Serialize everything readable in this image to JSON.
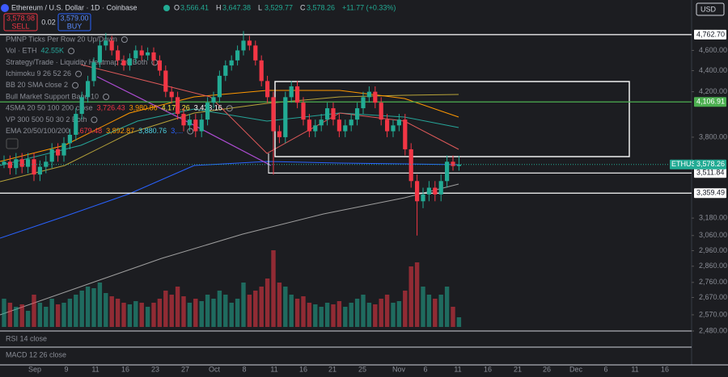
{
  "header": {
    "symbol": "Ethereum / U.S. Dollar · 1D · Coinbase",
    "ohlc_labels": [
      "O",
      "H",
      "L",
      "C"
    ],
    "ohlc_values": [
      "3,566.41",
      "3,647.38",
      "3,529.77",
      "3,578.26"
    ],
    "change": "+11.77 (+0.33%)",
    "currency": "USD"
  },
  "trade": {
    "sell_price": "3,578.98",
    "sell": "SELL",
    "spread": "0.02",
    "buy_price": "3,579.00",
    "buy": "BUY"
  },
  "indicators": [
    {
      "name": "PMNP Ticks Per Row 20 Up/Down"
    },
    {
      "name": "Vol · ETH",
      "values": [
        "42.55K"
      ],
      "colors": [
        "#26a69a"
      ]
    },
    {
      "name": "Strategy/Trade · Liquidity Heatmap 2.0 Both"
    },
    {
      "name": "Ichimoku 9 26 52 26"
    },
    {
      "name": "BB 20 SMA close 2"
    },
    {
      "name": "Bull Market Support Band 10"
    },
    {
      "name": "4SMA 20 50 100 200 close",
      "values": [
        "3,726.43",
        "3,980.86",
        "4,179.26",
        "3,433.16"
      ],
      "colors": [
        "#f23645",
        "#ff9800",
        "#ffeb3b",
        "#ffffff"
      ]
    },
    {
      "name": "VP 300 500 50 30 2 Both"
    },
    {
      "name": "EMA 20/50/100/200",
      "values": [
        "3,679.48",
        "3,892.87",
        "3,880.76",
        "3,..."
      ],
      "colors": [
        "#f23645",
        "#ff9800",
        "#4dd0e1",
        "#2962ff"
      ]
    }
  ],
  "chart_data": {
    "type": "candlestick",
    "symbol": "ETHUSD",
    "log": true,
    "ylim": [
      2480,
      5140
    ],
    "up_color": "#22ab94",
    "down_color": "#f23645",
    "open": [
      3580,
      3600,
      3550,
      3620,
      3560,
      3620,
      3500,
      3560,
      3600,
      3700,
      3650,
      3750,
      3820,
      4000,
      4150,
      4300,
      4480,
      4650,
      4700,
      4600,
      4500,
      4450,
      4520,
      4600,
      4550,
      4580,
      4500,
      4400,
      4200,
      4150,
      4000,
      3900,
      3950,
      3850,
      3950,
      4100,
      4150,
      4350,
      4450,
      4500,
      4600,
      4700,
      4650,
      4500,
      4300,
      4150,
      3850,
      3800,
      4150,
      4250,
      4100,
      3950,
      3850,
      3900,
      3950,
      4050,
      3950,
      3850,
      3900,
      3950,
      4050,
      4150,
      4200,
      4100,
      3950,
      3850,
      3900,
      3950,
      3700,
      3450,
      3300,
      3350,
      3400,
      3350,
      3450,
      3600,
      3566.41
    ],
    "high": [
      3650,
      3650,
      3670,
      3670,
      3670,
      3670,
      3610,
      3650,
      3750,
      3750,
      3800,
      3870,
      4050,
      4200,
      4350,
      4530,
      4700,
      4780,
      4750,
      4650,
      4550,
      4570,
      4650,
      4650,
      4630,
      4630,
      4550,
      4450,
      4250,
      4200,
      4050,
      4000,
      4000,
      4000,
      4150,
      4200,
      4400,
      4500,
      4550,
      4650,
      4800,
      4750,
      4700,
      4550,
      4350,
      4200,
      3900,
      4200,
      4300,
      4300,
      4150,
      4000,
      3950,
      4000,
      4100,
      4100,
      4000,
      3950,
      4000,
      4100,
      4200,
      4250,
      4250,
      4150,
      4000,
      3950,
      4000,
      4000,
      3750,
      3500,
      3400,
      3450,
      3450,
      3500,
      3650,
      3650,
      3647.38
    ],
    "low": [
      3550,
      3500,
      3500,
      3510,
      3510,
      3450,
      3450,
      3510,
      3550,
      3600,
      3600,
      3700,
      3770,
      3950,
      4100,
      4250,
      4430,
      4600,
      4550,
      4450,
      4400,
      4400,
      4470,
      4500,
      4500,
      4450,
      4350,
      4150,
      4100,
      3950,
      3850,
      3850,
      3800,
      3800,
      3900,
      4050,
      4100,
      4300,
      4400,
      4450,
      4550,
      4600,
      4450,
      4250,
      4100,
      3500,
      3750,
      3750,
      4100,
      4050,
      3900,
      3800,
      3800,
      3850,
      3900,
      3900,
      3800,
      3800,
      3850,
      3900,
      4000,
      4100,
      4050,
      3900,
      3800,
      3800,
      3850,
      3650,
      3400,
      3060,
      3250,
      3300,
      3300,
      3300,
      3400,
      3530,
      3529.77
    ],
    "close": [
      3600,
      3550,
      3620,
      3560,
      3620,
      3500,
      3560,
      3600,
      3700,
      3650,
      3750,
      3820,
      4000,
      4150,
      4300,
      4480,
      4650,
      4700,
      4600,
      4500,
      4450,
      4520,
      4600,
      4550,
      4580,
      4500,
      4400,
      4200,
      4150,
      4000,
      3900,
      3950,
      3850,
      3950,
      4100,
      4150,
      4350,
      4450,
      4500,
      4600,
      4700,
      4650,
      4500,
      4300,
      4150,
      3850,
      3800,
      4150,
      4250,
      4100,
      3950,
      3850,
      3900,
      3950,
      4050,
      3950,
      3850,
      3900,
      3950,
      4050,
      4150,
      4200,
      4100,
      3950,
      3850,
      3900,
      3950,
      3700,
      3450,
      3300,
      3350,
      3400,
      3350,
      3450,
      3600,
      3566.41,
      3578.26
    ],
    "volume": [
      35,
      30,
      25,
      28,
      20,
      40,
      30,
      25,
      35,
      28,
      30,
      35,
      40,
      45,
      50,
      48,
      55,
      42,
      38,
      35,
      30,
      28,
      32,
      30,
      25,
      30,
      35,
      45,
      40,
      50,
      38,
      30,
      35,
      32,
      40,
      35,
      45,
      40,
      30,
      35,
      55,
      40,
      45,
      50,
      60,
      95,
      55,
      50,
      40,
      35,
      38,
      30,
      28,
      25,
      30,
      28,
      32,
      25,
      30,
      35,
      40,
      30,
      28,
      35,
      40,
      30,
      32,
      45,
      75,
      80,
      50,
      40,
      35,
      40,
      50,
      25,
      12
    ],
    "volume_lim": [
      0,
      100
    ],
    "yticks": [
      {
        "value": 4600,
        "label": "4,600.00"
      },
      {
        "value": 4400,
        "label": "4,400.00"
      },
      {
        "value": 4200,
        "label": "4,200.00"
      },
      {
        "value": 3800,
        "label": "3,800.00"
      },
      {
        "value": 3180,
        "label": "3,180.00"
      },
      {
        "value": 3060,
        "label": "3,060.00"
      },
      {
        "value": 2960,
        "label": "2,960.00"
      },
      {
        "value": 2860,
        "label": "2,860.00"
      },
      {
        "value": 2760,
        "label": "2,760.00"
      },
      {
        "value": 2670,
        "label": "2,670.00"
      },
      {
        "value": 2570,
        "label": "2,570.00"
      },
      {
        "value": 2480,
        "label": "2,480.00"
      }
    ],
    "levels": [
      {
        "value": 4762.7,
        "label": "4,762.70",
        "color": "#ffffff"
      },
      {
        "value": 4106.91,
        "label": "4,106.91",
        "color": "#4caf50"
      },
      {
        "value": 3511.84,
        "label": "3,511.84",
        "color": "#ffffff"
      },
      {
        "value": 3359.49,
        "label": "3,359.49",
        "color": "#ffffff"
      }
    ],
    "last": {
      "value": 3578.26,
      "label": "3,578.26"
    },
    "x_labels": [
      "Sep",
      "9",
      "11",
      "16",
      "23",
      "27",
      "Oct",
      "8",
      "11",
      "16",
      "21",
      "25",
      "Nov",
      "6",
      "11",
      "16",
      "21",
      "26",
      "Dec",
      "6",
      "11",
      "16"
    ]
  },
  "panes": [
    "RSI 14 close",
    "MACD 12 26 close"
  ]
}
